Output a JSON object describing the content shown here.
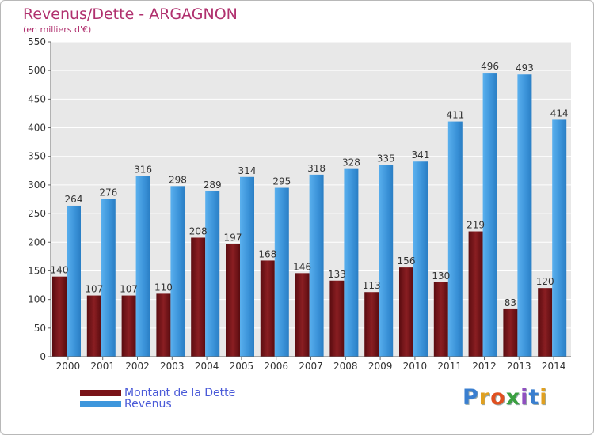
{
  "title": "Revenus/Dette - ARGAGNON",
  "subtitle": "(en milliers d'€)",
  "logo": {
    "text": "Proxiti",
    "colors": [
      "#3a7fd0",
      "#e0a020",
      "#e05020",
      "#3aa040",
      "#9050c0",
      "#3a7fd0",
      "#e0a020"
    ]
  },
  "colors": {
    "dette": "#7a1418",
    "revenus": "#3d96dc",
    "title": "#b0306e",
    "legend_text": "#4a5ad8"
  },
  "chart_data": {
    "type": "bar",
    "title": "Revenus/Dette - ARGAGNON",
    "subtitle": "(en milliers d'€)",
    "categories": [
      "2000",
      "2001",
      "2002",
      "2003",
      "2004",
      "2005",
      "2006",
      "2007",
      "2008",
      "2009",
      "2010",
      "2011",
      "2012",
      "2013",
      "2014"
    ],
    "series": [
      {
        "name": "Montant de la Dette",
        "values": [
          140,
          107,
          107,
          110,
          208,
          197,
          168,
          146,
          133,
          113,
          156,
          130,
          219,
          83,
          120
        ]
      },
      {
        "name": "Revenus",
        "values": [
          264,
          276,
          316,
          298,
          289,
          314,
          295,
          318,
          328,
          335,
          341,
          411,
          496,
          493,
          414
        ]
      }
    ],
    "ylim": [
      0,
      550
    ],
    "yticks": [
      0,
      50,
      100,
      150,
      200,
      250,
      300,
      350,
      400,
      450,
      500,
      550
    ],
    "grid": true,
    "legend": "bottom-left"
  }
}
